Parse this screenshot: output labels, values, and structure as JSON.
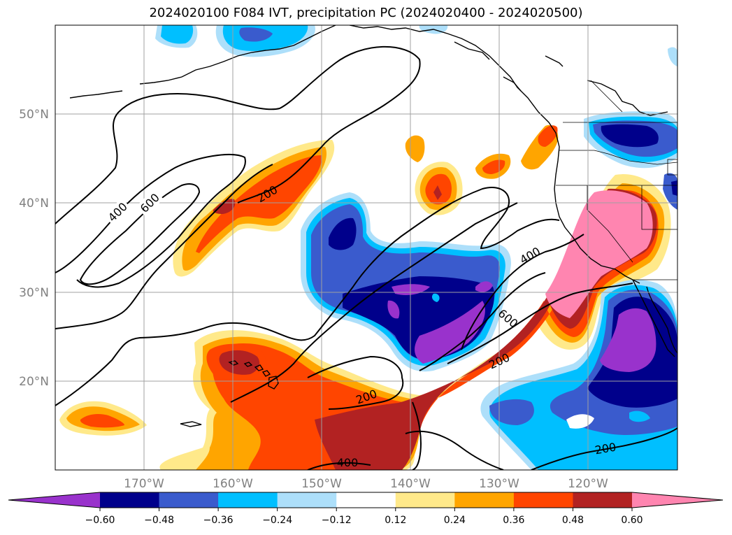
{
  "title": "2024020100 F084 IVT, precipitation PC (2024020400 - 2024020500)",
  "map": {
    "lat_labels": [
      "50°N",
      "40°N",
      "30°N",
      "20°N"
    ],
    "lon_labels": [
      "170°W",
      "160°W",
      "150°W",
      "140°W",
      "130°W",
      "120°W"
    ],
    "ivt_contour_labels": [
      "400",
      "600",
      "200",
      "400",
      "600",
      "200",
      "200",
      "400",
      "200"
    ]
  },
  "colorbar": {
    "ticks": [
      "−0.60",
      "−0.48",
      "−0.36",
      "−0.24",
      "−0.12",
      "0.12",
      "0.24",
      "0.36",
      "0.48",
      "0.60"
    ],
    "colors": [
      "#9932CC",
      "#00008B",
      "#3A5BCD",
      "#00BFFF",
      "#ADDFFA",
      "#FFFFFF",
      "#FFE98A",
      "#FFA500",
      "#FF4500",
      "#B22222",
      "#FF85B0"
    ]
  }
}
